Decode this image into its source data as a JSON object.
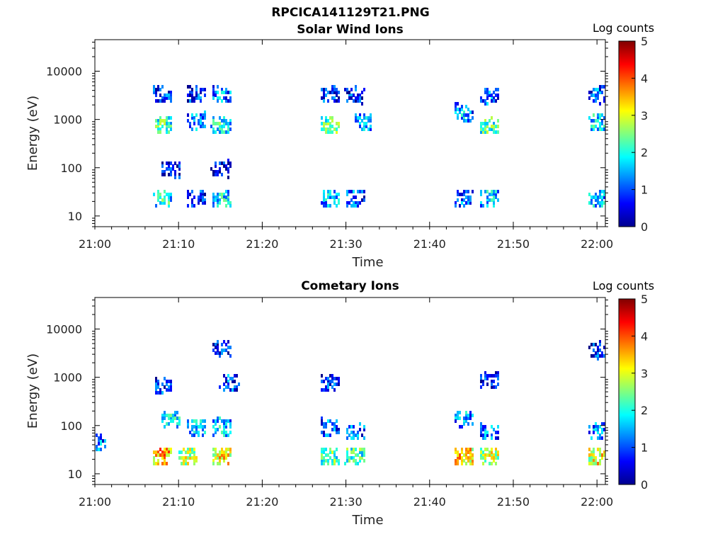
{
  "figure": {
    "title": "RPCICA141129T21.PNG"
  },
  "chart_data": [
    {
      "type": "heatmap",
      "title": "Solar Wind Ions",
      "xlabel": "Time",
      "ylabel": "Energy (eV)",
      "xticks": [
        "21:00",
        "21:10",
        "21:20",
        "21:30",
        "21:40",
        "21:50",
        "22:00"
      ],
      "xlim": [
        "21:00",
        "22:01"
      ],
      "ylim": [
        6,
        45000
      ],
      "yscale": "log",
      "yticks": [
        10,
        100,
        1000,
        10000
      ],
      "ytick_labels": [
        "10",
        "100",
        "1000",
        "10000"
      ],
      "colorbar": {
        "label": "Log counts",
        "range": [
          0,
          5
        ],
        "ticks": [
          "0",
          "1",
          "2",
          "3",
          "4",
          "5"
        ],
        "colormap": "jet"
      },
      "clusters": [
        {
          "t": "21:08",
          "e": 25,
          "level": 2.2
        },
        {
          "t": "21:08",
          "e": 800,
          "level": 2.4
        },
        {
          "t": "21:08",
          "e": 3500,
          "level": 1.2
        },
        {
          "t": "21:09",
          "e": 100,
          "level": 1.0
        },
        {
          "t": "21:12",
          "e": 25,
          "level": 1.2
        },
        {
          "t": "21:12",
          "e": 1000,
          "level": 1.4
        },
        {
          "t": "21:12",
          "e": 3500,
          "level": 1.2
        },
        {
          "t": "21:15",
          "e": 25,
          "level": 2.0
        },
        {
          "t": "21:15",
          "e": 800,
          "level": 2.2
        },
        {
          "t": "21:15",
          "e": 3500,
          "level": 1.5
        },
        {
          "t": "21:15",
          "e": 100,
          "level": 0.8
        },
        {
          "t": "21:28",
          "e": 25,
          "level": 1.8
        },
        {
          "t": "21:28",
          "e": 800,
          "level": 2.6
        },
        {
          "t": "21:28",
          "e": 3500,
          "level": 1.2
        },
        {
          "t": "21:31",
          "e": 25,
          "level": 1.3
        },
        {
          "t": "21:32",
          "e": 1000,
          "level": 1.6
        },
        {
          "t": "21:31",
          "e": 3500,
          "level": 1.0
        },
        {
          "t": "21:44",
          "e": 25,
          "level": 1.3
        },
        {
          "t": "21:44",
          "e": 1500,
          "level": 1.6
        },
        {
          "t": "21:47",
          "e": 25,
          "level": 1.8
        },
        {
          "t": "21:47",
          "e": 800,
          "level": 2.4
        },
        {
          "t": "21:47",
          "e": 3500,
          "level": 1.4
        },
        {
          "t": "22:00",
          "e": 25,
          "level": 1.8
        },
        {
          "t": "22:00",
          "e": 1000,
          "level": 2.0
        },
        {
          "t": "22:00",
          "e": 3500,
          "level": 1.2
        }
      ]
    },
    {
      "type": "heatmap",
      "title": "Cometary Ions",
      "xlabel": "Time",
      "ylabel": "Energy (eV)",
      "xticks": [
        "21:00",
        "21:10",
        "21:20",
        "21:30",
        "21:40",
        "21:50",
        "22:00"
      ],
      "xlim": [
        "21:00",
        "22:01"
      ],
      "ylim": [
        6,
        45000
      ],
      "yscale": "log",
      "yticks": [
        10,
        100,
        1000,
        10000
      ],
      "ytick_labels": [
        "10",
        "100",
        "1000",
        "10000"
      ],
      "colorbar": {
        "label": "Log counts",
        "range": [
          0,
          5
        ],
        "ticks": [
          "0",
          "1",
          "2",
          "3",
          "4",
          "5"
        ],
        "colormap": "jet"
      },
      "clusters": [
        {
          "t": "21:00",
          "e": 50,
          "level": 1.5
        },
        {
          "t": "21:08",
          "e": 25,
          "level": 3.8
        },
        {
          "t": "21:09",
          "e": 150,
          "level": 2.0
        },
        {
          "t": "21:08",
          "e": 700,
          "level": 1.0
        },
        {
          "t": "21:11",
          "e": 25,
          "level": 3.0
        },
        {
          "t": "21:12",
          "e": 100,
          "level": 1.8
        },
        {
          "t": "21:15",
          "e": 25,
          "level": 3.5
        },
        {
          "t": "21:15",
          "e": 100,
          "level": 1.8
        },
        {
          "t": "21:16",
          "e": 800,
          "level": 1.2
        },
        {
          "t": "21:15",
          "e": 4000,
          "level": 1.0
        },
        {
          "t": "21:28",
          "e": 25,
          "level": 2.6
        },
        {
          "t": "21:28",
          "e": 100,
          "level": 1.4
        },
        {
          "t": "21:28",
          "e": 800,
          "level": 1.0
        },
        {
          "t": "21:31",
          "e": 25,
          "level": 2.5
        },
        {
          "t": "21:31",
          "e": 80,
          "level": 1.4
        },
        {
          "t": "21:44",
          "e": 25,
          "level": 3.6
        },
        {
          "t": "21:44",
          "e": 150,
          "level": 1.6
        },
        {
          "t": "21:47",
          "e": 25,
          "level": 3.2
        },
        {
          "t": "21:47",
          "e": 80,
          "level": 1.5
        },
        {
          "t": "21:47",
          "e": 1000,
          "level": 1.0
        },
        {
          "t": "22:00",
          "e": 25,
          "level": 3.4
        },
        {
          "t": "22:00",
          "e": 80,
          "level": 1.5
        },
        {
          "t": "22:00",
          "e": 4000,
          "level": 1.0
        }
      ]
    }
  ]
}
